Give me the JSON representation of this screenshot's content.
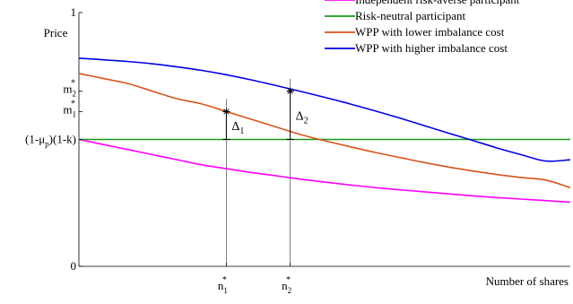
{
  "chart_data": {
    "type": "line",
    "title": "",
    "xlabel": "Number of shares",
    "ylabel": "Price",
    "xlim": [
      0,
      1
    ],
    "ylim": [
      0,
      1
    ],
    "grid": false,
    "legend_position": "top-right",
    "y_ticks": [
      {
        "value": 0,
        "label": "0"
      },
      {
        "value": 0.5,
        "label": "(1-μp)(1-k)"
      },
      {
        "value": 0.61,
        "label": "m1*"
      },
      {
        "value": 0.69,
        "label": "m2*"
      },
      {
        "value": 1,
        "label": "1"
      }
    ],
    "x_ticks": [
      {
        "value": 0.3,
        "label": "n1*"
      },
      {
        "value": 0.43,
        "label": "n2*"
      }
    ],
    "x": [
      0,
      0.05,
      0.1,
      0.15,
      0.2,
      0.25,
      0.3,
      0.35,
      0.4,
      0.45,
      0.5,
      0.55,
      0.6,
      0.65,
      0.7,
      0.75,
      0.8,
      0.85,
      0.9,
      0.95,
      1.0
    ],
    "series": [
      {
        "name": "Independent risk-averse participant",
        "color": "#ff00ff",
        "values": [
          0.5,
          0.48,
          0.46,
          0.44,
          0.42,
          0.4,
          0.385,
          0.37,
          0.357,
          0.344,
          0.332,
          0.321,
          0.311,
          0.302,
          0.294,
          0.286,
          0.278,
          0.271,
          0.265,
          0.259,
          0.253
        ]
      },
      {
        "name": "Risk-neutral participant",
        "color": "#1a9a1a",
        "values": [
          0.5,
          0.5,
          0.5,
          0.5,
          0.5,
          0.5,
          0.5,
          0.5,
          0.5,
          0.5,
          0.5,
          0.5,
          0.5,
          0.5,
          0.5,
          0.5,
          0.5,
          0.5,
          0.5,
          0.5,
          0.5
        ]
      },
      {
        "name": "WPP with lower imbalance cost",
        "color": "#d95319",
        "values": [
          0.76,
          0.74,
          0.72,
          0.69,
          0.66,
          0.64,
          0.61,
          0.58,
          0.55,
          0.52,
          0.495,
          0.472,
          0.45,
          0.43,
          0.41,
          0.392,
          0.376,
          0.362,
          0.35,
          0.34,
          0.31
        ]
      },
      {
        "name": "WPP with higher imbalance cost",
        "color": "#0000e6",
        "values": [
          0.82,
          0.814,
          0.807,
          0.798,
          0.786,
          0.772,
          0.755,
          0.735,
          0.713,
          0.69,
          0.666,
          0.641,
          0.614,
          0.586,
          0.556,
          0.526,
          0.497,
          0.467,
          0.44,
          0.415,
          0.42
        ]
      }
    ],
    "annotations": [
      {
        "label": "Δ1",
        "x": 0.3,
        "y_from": 0.5,
        "y_to": 0.61
      },
      {
        "label": "Δ2",
        "x": 0.43,
        "y_from": 0.5,
        "y_to": 0.69
      }
    ]
  }
}
